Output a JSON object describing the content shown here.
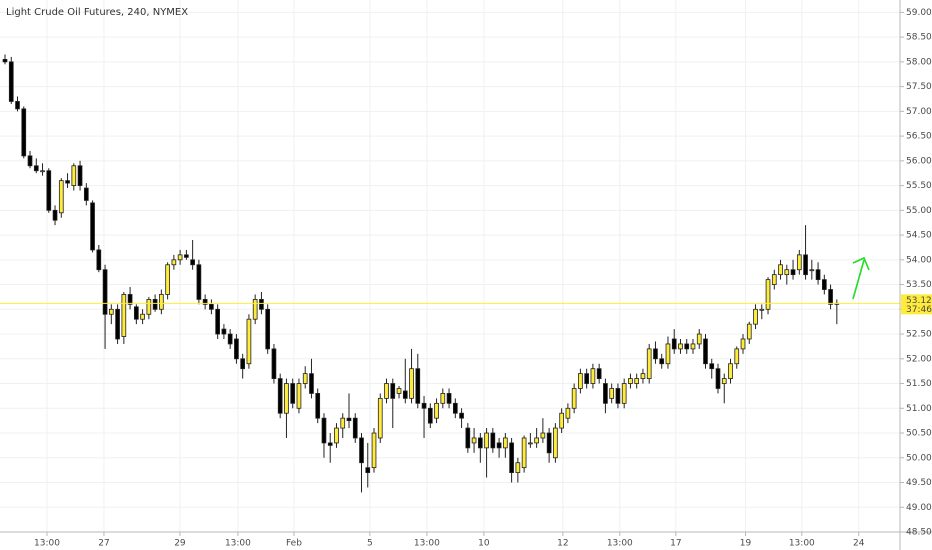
{
  "chart_data": {
    "type": "candlestick",
    "title": "Light Crude Oil Futures, 240, NYMEX",
    "up_color": "#ffeb3b",
    "down_color": "#000000",
    "outline_color": "#222222",
    "grid": true,
    "countdown": "37:46",
    "xlim": [
      -0.8,
      143.1
    ],
    "xticks": [
      {
        "value": 6.71,
        "label": "13:00"
      },
      {
        "value": 15.82,
        "label": "27"
      },
      {
        "value": 27.97,
        "label": "29"
      },
      {
        "value": 37.24,
        "label": "13:00"
      },
      {
        "value": 46.2,
        "label": "Feb"
      },
      {
        "value": 58.34,
        "label": "5"
      },
      {
        "value": 67.45,
        "label": "13:00"
      },
      {
        "value": 76.57,
        "label": "10"
      },
      {
        "value": 89.19,
        "label": "12"
      },
      {
        "value": 98.3,
        "label": "13:00"
      },
      {
        "value": 107.26,
        "label": "17"
      },
      {
        "value": 118.4,
        "label": "19"
      },
      {
        "value": 127.4,
        "label": "13:00"
      },
      {
        "value": 136.5,
        "label": "24"
      }
    ],
    "ylim": [
      48.5,
      59.25
    ],
    "yticks": [
      {
        "value": 48.5,
        "label": "48.50"
      },
      {
        "value": 49,
        "label": "49.00"
      },
      {
        "value": 49.5,
        "label": "49.50"
      },
      {
        "value": 50,
        "label": "50.00"
      },
      {
        "value": 50.5,
        "label": "50.50"
      },
      {
        "value": 51,
        "label": "51.00"
      },
      {
        "value": 51.5,
        "label": "51.50"
      },
      {
        "value": 52,
        "label": "52.00"
      },
      {
        "value": 52.5,
        "label": "52.50"
      },
      {
        "value": 53,
        "label": "53.00"
      },
      {
        "value": 53.5,
        "label": "53.50"
      },
      {
        "value": 54,
        "label": "54.00"
      },
      {
        "value": 54.5,
        "label": "54.50"
      },
      {
        "value": 55,
        "label": "55.00"
      },
      {
        "value": 55.5,
        "label": "55.50"
      },
      {
        "value": 56,
        "label": "56.00"
      },
      {
        "value": 56.5,
        "label": "56.50"
      },
      {
        "value": 57,
        "label": "57.00"
      },
      {
        "value": 57.5,
        "label": "57.50"
      },
      {
        "value": 58,
        "label": "58.00"
      },
      {
        "value": 58.5,
        "label": "58.50"
      },
      {
        "value": 59,
        "label": "59.00"
      }
    ],
    "ohlc": [
      [
        58.05,
        58.15,
        57.95,
        58.0
      ],
      [
        58.0,
        58.1,
        57.15,
        57.2
      ],
      [
        57.2,
        57.3,
        57.0,
        57.05
      ],
      [
        57.05,
        57.1,
        56.05,
        56.1
      ],
      [
        56.1,
        56.2,
        55.85,
        55.9
      ],
      [
        55.9,
        56.05,
        55.75,
        55.8
      ],
      [
        55.8,
        55.95,
        55.7,
        55.8
      ],
      [
        55.8,
        55.85,
        54.95,
        55.0
      ],
      [
        55.0,
        55.1,
        54.7,
        54.8
      ],
      [
        54.95,
        55.65,
        54.85,
        55.6
      ],
      [
        55.6,
        55.75,
        55.45,
        55.55
      ],
      [
        55.5,
        55.95,
        55.4,
        55.9
      ],
      [
        55.9,
        56.0,
        55.4,
        55.5
      ],
      [
        55.45,
        55.55,
        55.1,
        55.2
      ],
      [
        55.15,
        55.2,
        54.15,
        54.2
      ],
      [
        54.2,
        54.3,
        53.75,
        53.8
      ],
      [
        53.8,
        53.9,
        52.2,
        52.9
      ],
      [
        52.9,
        53.1,
        52.7,
        53.0
      ],
      [
        53.0,
        53.1,
        52.3,
        52.4
      ],
      [
        52.45,
        53.35,
        52.3,
        53.3
      ],
      [
        53.3,
        53.45,
        53.0,
        53.1
      ],
      [
        53.05,
        53.1,
        52.7,
        52.8
      ],
      [
        52.8,
        53.0,
        52.7,
        52.9
      ],
      [
        52.9,
        53.25,
        52.8,
        53.2
      ],
      [
        53.2,
        53.3,
        52.95,
        53.0
      ],
      [
        53.0,
        53.4,
        52.9,
        53.3
      ],
      [
        53.3,
        53.95,
        53.2,
        53.9
      ],
      [
        53.9,
        54.1,
        53.8,
        54.0
      ],
      [
        54.0,
        54.2,
        53.9,
        54.1
      ],
      [
        54.1,
        54.2,
        54.0,
        54.05
      ],
      [
        54.0,
        54.4,
        53.8,
        53.9
      ],
      [
        53.9,
        54.0,
        53.1,
        53.2
      ],
      [
        53.2,
        53.3,
        53.0,
        53.1
      ],
      [
        53.1,
        53.2,
        52.9,
        53.0
      ],
      [
        53.0,
        53.1,
        52.4,
        52.5
      ],
      [
        52.6,
        52.7,
        52.4,
        52.5
      ],
      [
        52.5,
        52.6,
        52.2,
        52.3
      ],
      [
        52.4,
        52.5,
        51.9,
        52.0
      ],
      [
        52.0,
        52.1,
        51.6,
        51.8
      ],
      [
        51.9,
        52.9,
        51.8,
        52.8
      ],
      [
        52.8,
        53.3,
        52.7,
        53.2
      ],
      [
        53.2,
        53.35,
        52.9,
        53.0
      ],
      [
        53.0,
        53.1,
        52.1,
        52.2
      ],
      [
        52.2,
        52.3,
        51.5,
        51.6
      ],
      [
        51.6,
        51.7,
        50.8,
        50.9
      ],
      [
        50.9,
        51.6,
        50.4,
        51.5
      ],
      [
        51.5,
        51.6,
        51.0,
        51.1
      ],
      [
        51.0,
        51.6,
        50.9,
        51.5
      ],
      [
        51.5,
        51.85,
        51.4,
        51.7
      ],
      [
        51.7,
        52.0,
        51.2,
        51.3
      ],
      [
        51.3,
        51.4,
        50.7,
        50.8
      ],
      [
        50.8,
        50.9,
        50.0,
        50.3
      ],
      [
        50.3,
        50.5,
        49.9,
        50.25
      ],
      [
        50.3,
        50.7,
        50.2,
        50.6
      ],
      [
        50.6,
        50.9,
        50.4,
        50.8
      ],
      [
        50.8,
        51.3,
        50.6,
        50.75
      ],
      [
        50.8,
        50.9,
        50.3,
        50.4
      ],
      [
        50.4,
        50.5,
        49.3,
        49.9
      ],
      [
        49.8,
        50.3,
        49.4,
        49.7
      ],
      [
        49.8,
        50.6,
        49.7,
        50.5
      ],
      [
        50.4,
        51.3,
        50.3,
        51.2
      ],
      [
        51.2,
        51.6,
        51.1,
        51.5
      ],
      [
        51.5,
        51.6,
        50.6,
        51.2
      ],
      [
        51.3,
        51.45,
        51.2,
        51.4
      ],
      [
        51.35,
        52.0,
        51.1,
        51.2
      ],
      [
        51.2,
        52.2,
        51.1,
        51.8
      ],
      [
        51.8,
        52.1,
        51.0,
        51.1
      ],
      [
        51.1,
        51.25,
        50.4,
        51.0
      ],
      [
        51.0,
        51.1,
        50.6,
        50.7
      ],
      [
        50.8,
        51.2,
        50.7,
        51.1
      ],
      [
        51.1,
        51.4,
        51.0,
        51.3
      ],
      [
        51.3,
        51.4,
        51.0,
        51.1
      ],
      [
        51.1,
        51.2,
        50.8,
        50.9
      ],
      [
        50.9,
        51.0,
        50.6,
        50.8
      ],
      [
        50.6,
        50.7,
        50.1,
        50.2
      ],
      [
        50.3,
        50.6,
        50.1,
        50.4
      ],
      [
        50.4,
        50.5,
        49.9,
        50.2
      ],
      [
        50.2,
        50.6,
        49.6,
        50.5
      ],
      [
        50.5,
        50.6,
        50.1,
        50.2
      ],
      [
        50.3,
        50.4,
        50.0,
        50.2
      ],
      [
        50.2,
        50.5,
        50.0,
        50.4
      ],
      [
        50.3,
        50.4,
        49.5,
        49.7
      ],
      [
        49.7,
        50.0,
        49.5,
        49.9
      ],
      [
        49.8,
        50.45,
        49.7,
        50.4
      ],
      [
        50.3,
        50.5,
        50.2,
        50.3
      ],
      [
        50.3,
        50.6,
        50.2,
        50.4
      ],
      [
        50.4,
        50.8,
        50.3,
        50.5
      ],
      [
        50.5,
        50.6,
        49.9,
        50.1
      ],
      [
        50.0,
        50.7,
        49.9,
        50.6
      ],
      [
        50.6,
        51.0,
        50.5,
        50.9
      ],
      [
        50.8,
        51.1,
        50.7,
        51.0
      ],
      [
        51.0,
        51.5,
        50.9,
        51.4
      ],
      [
        51.4,
        51.8,
        51.3,
        51.7
      ],
      [
        51.7,
        51.8,
        51.4,
        51.5
      ],
      [
        51.5,
        51.9,
        51.4,
        51.8
      ],
      [
        51.8,
        51.9,
        51.5,
        51.6
      ],
      [
        51.5,
        51.6,
        50.9,
        51.1
      ],
      [
        51.2,
        51.5,
        51.1,
        51.4
      ],
      [
        51.4,
        51.5,
        51.0,
        51.1
      ],
      [
        51.1,
        51.6,
        51.0,
        51.5
      ],
      [
        51.5,
        51.7,
        51.4,
        51.6
      ],
      [
        51.5,
        51.7,
        51.4,
        51.6
      ],
      [
        51.6,
        51.8,
        51.5,
        51.7
      ],
      [
        51.6,
        52.3,
        51.5,
        52.2
      ],
      [
        52.2,
        52.35,
        51.9,
        52.0
      ],
      [
        52.0,
        52.1,
        51.8,
        51.9
      ],
      [
        51.9,
        52.45,
        51.8,
        52.3
      ],
      [
        52.4,
        52.6,
        52.1,
        52.2
      ],
      [
        52.2,
        52.4,
        52.1,
        52.3
      ],
      [
        52.3,
        52.4,
        52.1,
        52.2
      ],
      [
        52.2,
        52.4,
        52.1,
        52.3
      ],
      [
        52.3,
        52.6,
        52.2,
        52.5
      ],
      [
        52.4,
        52.5,
        51.8,
        51.9
      ],
      [
        51.9,
        52.0,
        51.6,
        51.8
      ],
      [
        51.8,
        51.9,
        51.3,
        51.4
      ],
      [
        51.5,
        51.7,
        51.1,
        51.6
      ],
      [
        51.6,
        52.0,
        51.5,
        51.9
      ],
      [
        51.9,
        52.25,
        51.8,
        52.2
      ],
      [
        52.2,
        52.5,
        52.1,
        52.4
      ],
      [
        52.4,
        52.75,
        52.3,
        52.7
      ],
      [
        52.7,
        53.1,
        52.6,
        53.0
      ],
      [
        53.0,
        53.1,
        52.8,
        53.0
      ],
      [
        53.0,
        53.65,
        52.9,
        53.6
      ],
      [
        53.5,
        53.8,
        53.4,
        53.7
      ],
      [
        53.7,
        54.0,
        53.6,
        53.9
      ],
      [
        53.7,
        53.9,
        53.5,
        53.8
      ],
      [
        53.8,
        54.0,
        53.6,
        53.7
      ],
      [
        53.8,
        54.2,
        53.7,
        54.1
      ],
      [
        54.1,
        54.7,
        53.6,
        53.7
      ],
      [
        53.8,
        54.0,
        53.6,
        53.8
      ],
      [
        53.8,
        53.95,
        53.5,
        53.6
      ],
      [
        53.6,
        53.7,
        53.3,
        53.4
      ],
      [
        53.4,
        53.5,
        53.0,
        53.1
      ],
      [
        53.1,
        53.2,
        52.7,
        53.12
      ]
    ]
  }
}
